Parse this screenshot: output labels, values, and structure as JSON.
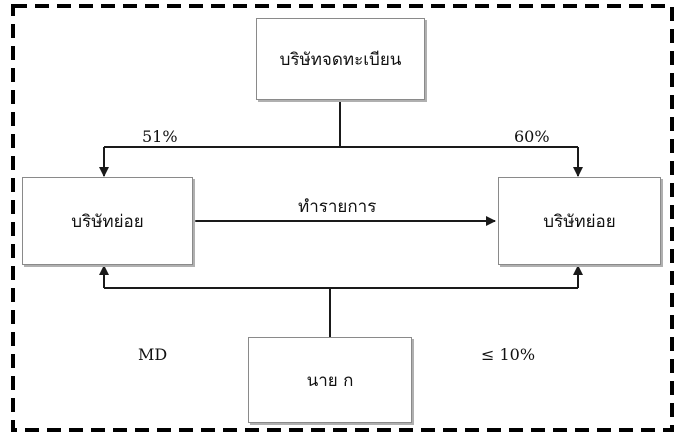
{
  "diagram": {
    "parent": "บริษัทจดทะเบียน",
    "subsidiary_left": "บริษัทย่อย",
    "subsidiary_right": "บริษัทย่อย",
    "person": "นาย ก",
    "stake_left": "51%",
    "stake_right": "60%",
    "transaction": "ทำรายการ",
    "md_label": "MD",
    "person_stake": "≤ 10%"
  }
}
